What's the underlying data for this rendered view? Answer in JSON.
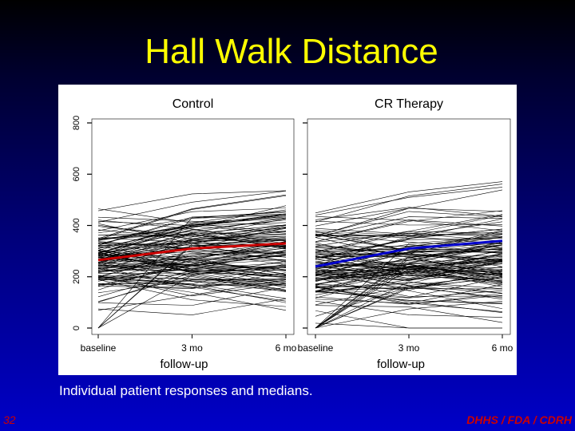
{
  "slide": {
    "title": "Hall Walk Distance",
    "caption": "Individual patient responses and medians.",
    "slide_number": "32",
    "footer": "DHHS / FDA / CDRH"
  },
  "colors": {
    "background_top": "#000000",
    "background_bottom": "#0000c8",
    "title": "#ffff00",
    "footer": "#cc0000",
    "patient_lines": "#000000",
    "control_median": "#cc0000",
    "cr_median": "#0000cc"
  },
  "chart_data": [
    {
      "type": "line",
      "title": "Control",
      "xlabel": "follow-up",
      "ylabel": "",
      "categories": [
        "baseline",
        "3 mo",
        "6 mo"
      ],
      "y_ticks": [
        0,
        200,
        400,
        600,
        800
      ],
      "ylim": [
        0,
        800
      ],
      "median_series": {
        "values": [
          265,
          310,
          330
        ],
        "color": "#cc0000"
      },
      "patient_lines": {
        "count": 130,
        "color": "#000000",
        "approx_range": [
          0,
          620
        ]
      }
    },
    {
      "type": "line",
      "title": "CR Therapy",
      "xlabel": "follow-up",
      "ylabel": "",
      "categories": [
        "baseline",
        "3 mo",
        "6 mo"
      ],
      "y_ticks": [
        0,
        200,
        400,
        600,
        800
      ],
      "ylim": [
        0,
        800
      ],
      "median_series": {
        "values": [
          240,
          310,
          340
        ],
        "color": "#0000cc"
      },
      "patient_lines": {
        "count": 130,
        "color": "#000000",
        "approx_range": [
          0,
          600
        ]
      }
    }
  ]
}
